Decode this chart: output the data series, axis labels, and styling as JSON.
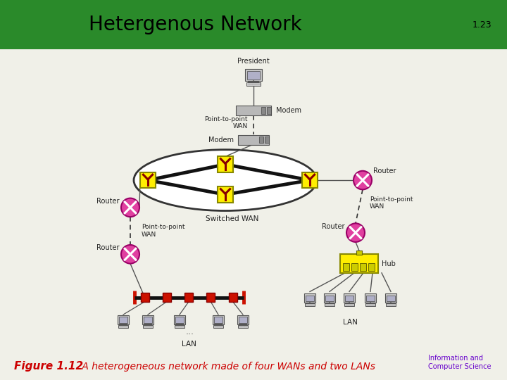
{
  "title": "Hetergenous Network",
  "slide_number": "1.23",
  "header_bg": "#2a8a2a",
  "header_text_color": "#000000",
  "bg_color": "#f0f0e8",
  "caption_bold": "Figure 1.12",
  "caption_italic": " A heterogeneous network made of four WANs and two LANs",
  "caption_bold_color": "#cc0000",
  "caption_italic_color": "#cc0000",
  "bottom_right_text1": "Information and",
  "bottom_right_text2": "Computer Science",
  "bottom_right_color": "#6600cc"
}
